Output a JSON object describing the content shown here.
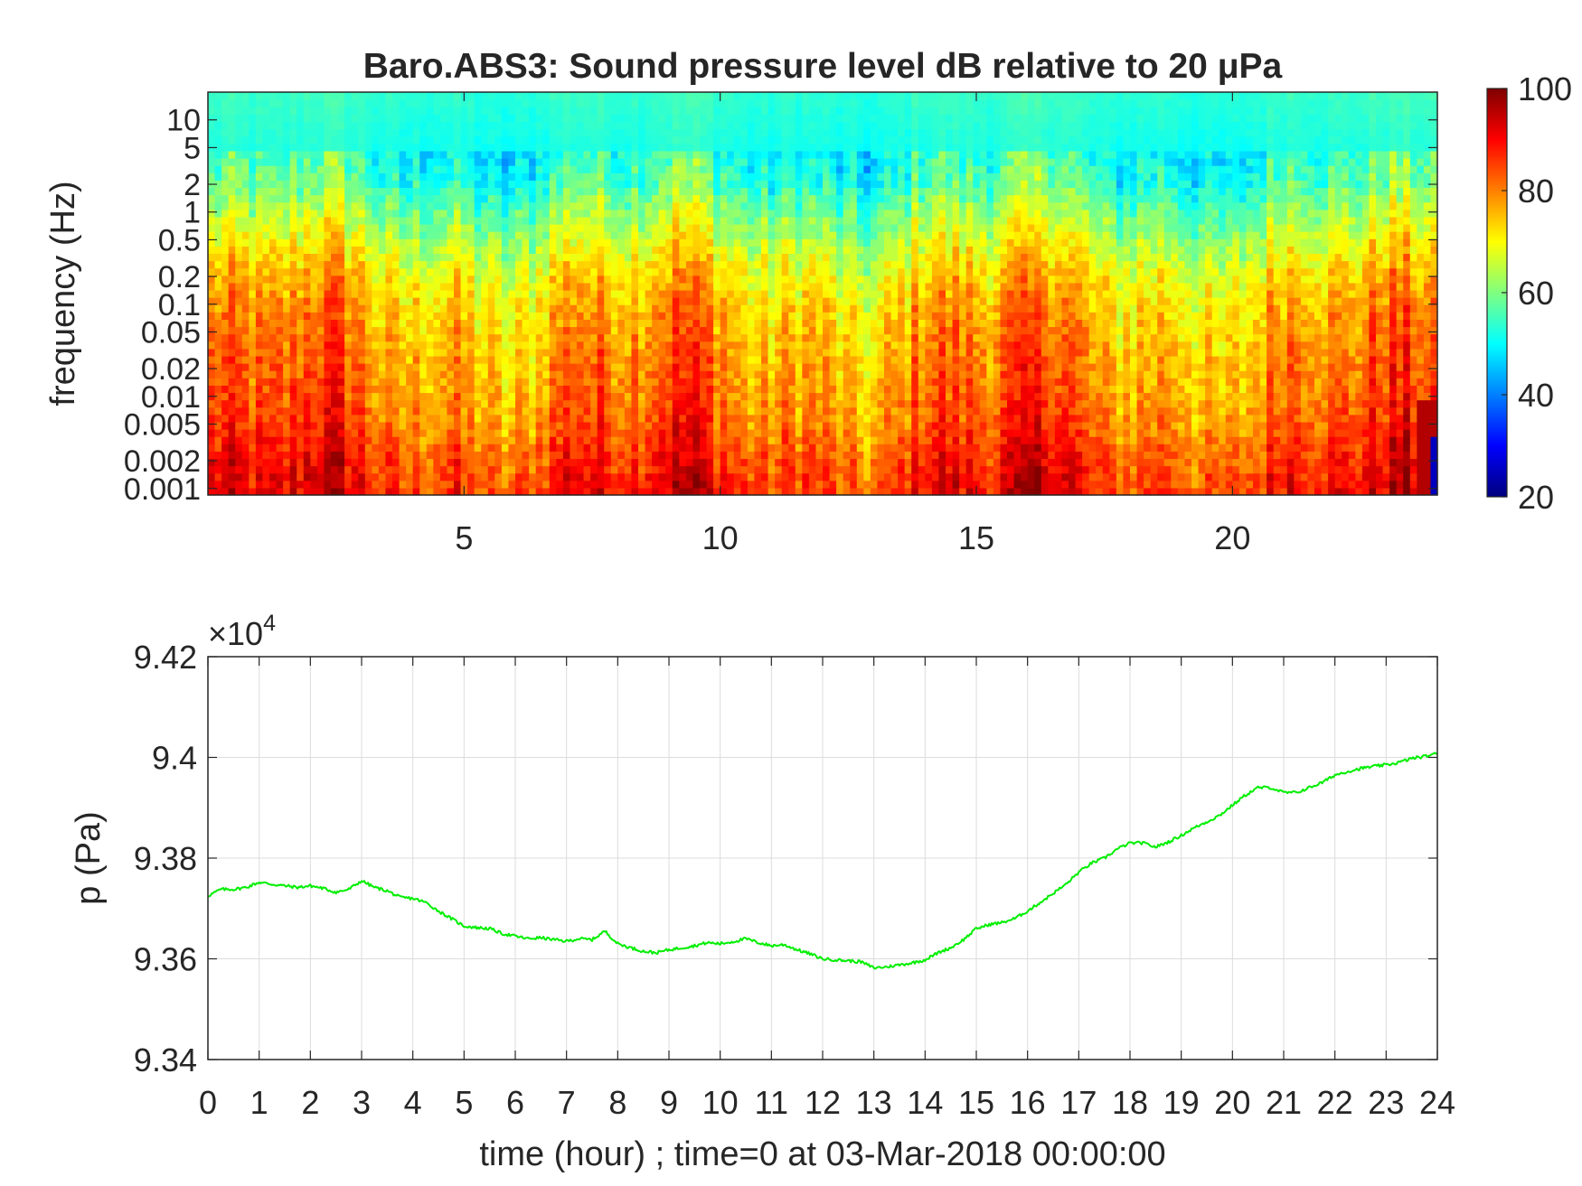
{
  "chart_data": [
    {
      "type": "heatmap",
      "title": "Baro.ABS3: Sound pressure level dB relative to 20 μPa",
      "ylabel": "frequency (Hz)",
      "xlabel": "",
      "x_ticks": [
        "5",
        "10",
        "15",
        "20"
      ],
      "x_tick_values": [
        5,
        10,
        15,
        20
      ],
      "xlim": [
        0,
        24
      ],
      "y_scale": "log",
      "y_ticks": [
        "10",
        "5",
        "2",
        "1",
        "0.5",
        "0.2",
        "0.1",
        "0.05",
        "0.02",
        "0.01",
        "0.005",
        "0.002",
        "0.001"
      ],
      "y_tick_values": [
        10,
        5,
        2,
        1,
        0.5,
        0.2,
        0.1,
        0.05,
        0.02,
        0.01,
        0.005,
        0.002,
        0.001
      ],
      "ylim": [
        0.00085,
        20
      ],
      "colorbar": {
        "label": "",
        "colormap": "jet",
        "range": [
          20,
          100
        ],
        "ticks": [
          "100",
          "80",
          "60",
          "40",
          "20"
        ],
        "tick_values": [
          100,
          80,
          60,
          40,
          20
        ]
      },
      "level_profile": {
        "frequency_hz": [
          0.001,
          0.002,
          0.005,
          0.01,
          0.02,
          0.05,
          0.1,
          0.2,
          0.5,
          1,
          2,
          5,
          10,
          20
        ],
        "typical_db": [
          88,
          86,
          82,
          80,
          79,
          77,
          75,
          72,
          66,
          61,
          55,
          52,
          53,
          54
        ]
      },
      "grid": false
    },
    {
      "type": "line",
      "title": "",
      "xlabel": "time (hour) ; time=0 at 03-Mar-2018 00:00:00",
      "ylabel": "p (Pa)",
      "y_multiplier_label": "×10",
      "y_multiplier_exp": "4",
      "xlim": [
        0,
        24
      ],
      "ylim": [
        93400,
        94200
      ],
      "x_ticks": [
        "0",
        "1",
        "2",
        "3",
        "4",
        "5",
        "6",
        "7",
        "8",
        "9",
        "10",
        "11",
        "12",
        "13",
        "14",
        "15",
        "16",
        "17",
        "18",
        "19",
        "20",
        "21",
        "22",
        "23",
        "24"
      ],
      "y_ticks": [
        "9.42",
        "9.4",
        "9.38",
        "9.36",
        "9.34"
      ],
      "y_tick_values": [
        94200,
        94000,
        93800,
        93600,
        93400
      ],
      "grid": true,
      "series": [
        {
          "color": "#00ee00",
          "x": [
            0,
            0.25,
            0.5,
            0.75,
            1,
            1.25,
            1.5,
            1.75,
            2,
            2.25,
            2.5,
            2.75,
            3,
            3.25,
            3.5,
            3.75,
            4,
            4.25,
            4.5,
            4.75,
            5,
            5.25,
            5.5,
            5.75,
            6,
            6.25,
            6.5,
            6.75,
            7,
            7.25,
            7.5,
            7.75,
            8,
            8.25,
            8.5,
            8.75,
            9,
            9.25,
            9.5,
            9.75,
            10,
            10.25,
            10.5,
            10.75,
            11,
            11.25,
            11.5,
            11.75,
            12,
            12.25,
            12.5,
            12.75,
            13,
            13.25,
            13.5,
            13.75,
            14,
            14.25,
            14.5,
            14.75,
            15,
            15.25,
            15.5,
            15.75,
            16,
            16.25,
            16.5,
            16.75,
            17,
            17.25,
            17.5,
            17.75,
            18,
            18.25,
            18.5,
            18.75,
            19,
            19.25,
            19.5,
            19.75,
            20,
            20.25,
            20.5,
            20.75,
            21,
            21.25,
            21.5,
            21.75,
            22,
            22.25,
            22.5,
            22.75,
            23,
            23.25,
            23.5,
            23.75,
            24
          ],
          "y": [
            93725,
            93738,
            93738,
            93742,
            93752,
            93748,
            93745,
            93742,
            93745,
            93740,
            93732,
            93738,
            93755,
            93742,
            93735,
            93722,
            93720,
            93712,
            93695,
            93680,
            93665,
            93662,
            93660,
            93650,
            93645,
            93640,
            93642,
            93638,
            93635,
            93640,
            93638,
            93655,
            93630,
            93622,
            93615,
            93612,
            93618,
            93622,
            93626,
            93632,
            93630,
            93634,
            93640,
            93632,
            93626,
            93628,
            93618,
            93610,
            93600,
            93598,
            93596,
            93594,
            93582,
            93584,
            93588,
            93592,
            93598,
            93612,
            93622,
            93638,
            93660,
            93668,
            93672,
            93680,
            93695,
            93712,
            93730,
            93748,
            93772,
            93790,
            93800,
            93818,
            93830,
            93830,
            93822,
            93832,
            93845,
            93860,
            93872,
            93885,
            93905,
            93925,
            93940,
            93940,
            93930,
            93930,
            93940,
            93950,
            93965,
            93972,
            93978,
            93982,
            93985,
            93990,
            93998,
            94002,
            94008
          ]
        }
      ]
    }
  ]
}
